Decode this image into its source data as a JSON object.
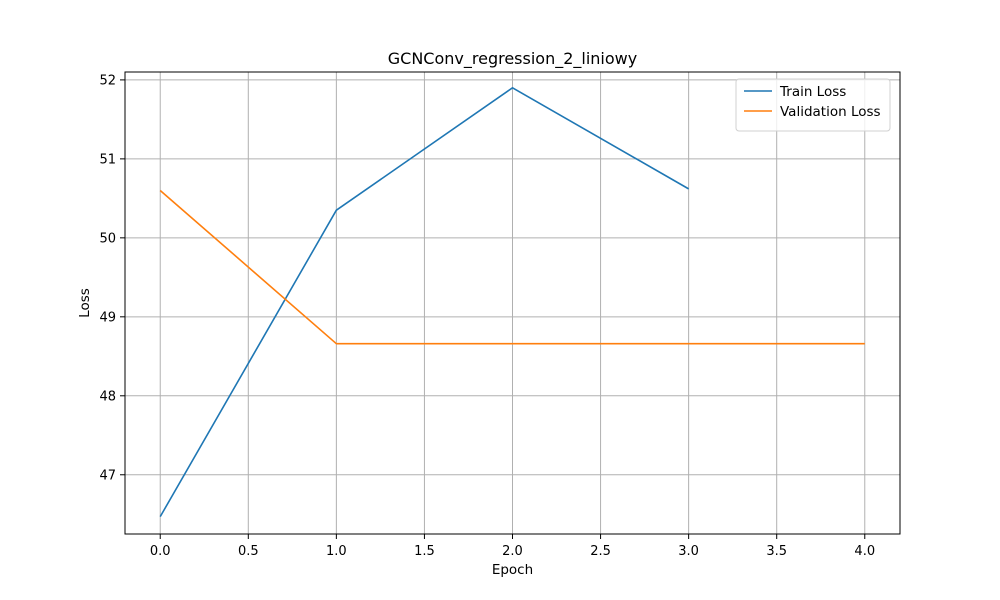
{
  "chart_data": {
    "type": "line",
    "title": "GCNConv_regression_2_liniowy",
    "xlabel": "Epoch",
    "ylabel": "Loss",
    "xlim": [
      -0.2,
      4.2
    ],
    "ylim": [
      46.25,
      52.1
    ],
    "xticks": [
      0.0,
      0.5,
      1.0,
      1.5,
      2.0,
      2.5,
      3.0,
      3.5,
      4.0
    ],
    "xtick_labels": [
      "0.0",
      "0.5",
      "1.0",
      "1.5",
      "2.0",
      "2.5",
      "3.0",
      "3.5",
      "4.0"
    ],
    "yticks": [
      47,
      48,
      49,
      50,
      51,
      52
    ],
    "ytick_labels": [
      "47",
      "48",
      "49",
      "50",
      "51",
      "52"
    ],
    "grid": true,
    "legend_position": "top-right",
    "series": [
      {
        "name": "Train Loss",
        "color": "#1f77b4",
        "x": [
          0,
          1,
          2,
          3
        ],
        "y": [
          46.47,
          50.35,
          51.9,
          50.62
        ]
      },
      {
        "name": "Validation Loss",
        "color": "#ff7f0e",
        "x": [
          0,
          1,
          2,
          3,
          4
        ],
        "y": [
          50.6,
          48.66,
          48.66,
          48.66,
          48.66
        ]
      }
    ]
  }
}
